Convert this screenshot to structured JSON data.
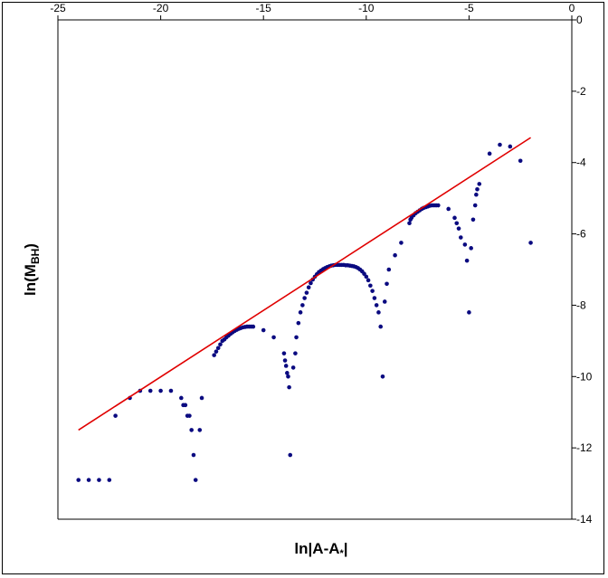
{
  "chart_data": {
    "type": "scatter",
    "xlim": [
      -25,
      0
    ],
    "ylim": [
      -14,
      0
    ],
    "x_ticks": [
      "-25",
      "-20",
      "-15",
      "-10",
      "-5",
      "0"
    ],
    "y_ticks": [
      "0",
      "-2",
      "-4",
      "-6",
      "-8",
      "-10",
      "-12",
      "-14"
    ],
    "x_tick_values": [
      -25,
      -20,
      -15,
      -10,
      -5,
      0
    ],
    "y_tick_values": [
      0,
      -2,
      -4,
      -6,
      -8,
      -10,
      -12,
      -14
    ],
    "xlabel": {
      "main": "ln|A-A",
      "sub": "*",
      "end": "|"
    },
    "ylabel": {
      "main": "ln(M",
      "sub": "BH",
      "end": ")"
    },
    "grid": false,
    "colors": {
      "points": "#0a0a80",
      "fit_line": "#e00000",
      "axis": "#000000"
    },
    "series": [
      {
        "type": "scatter",
        "points": [
          [
            -24.0,
            -12.9
          ],
          [
            -23.5,
            -12.9
          ],
          [
            -23.0,
            -12.9
          ],
          [
            -22.5,
            -12.9
          ],
          [
            -22.2,
            -11.1
          ],
          [
            -21.5,
            -10.6
          ],
          [
            -21.0,
            -10.4
          ],
          [
            -20.5,
            -10.4
          ],
          [
            -20.0,
            -10.4
          ],
          [
            -19.5,
            -10.4
          ],
          [
            -19.0,
            -10.6
          ],
          [
            -18.9,
            -10.8
          ],
          [
            -18.8,
            -10.8
          ],
          [
            -18.7,
            -11.1
          ],
          [
            -18.6,
            -11.1
          ],
          [
            -18.5,
            -11.5
          ],
          [
            -18.4,
            -12.2
          ],
          [
            -18.3,
            -12.9
          ],
          [
            -18.1,
            -11.5
          ],
          [
            -18.0,
            -10.6
          ],
          [
            -17.4,
            -9.4
          ],
          [
            -17.3,
            -9.3
          ],
          [
            -17.2,
            -9.2
          ],
          [
            -17.1,
            -9.1
          ],
          [
            -17.0,
            -9.0
          ],
          [
            -16.9,
            -8.96
          ],
          [
            -16.8,
            -8.9
          ],
          [
            -16.7,
            -8.85
          ],
          [
            -16.6,
            -8.8
          ],
          [
            -16.5,
            -8.76
          ],
          [
            -16.4,
            -8.72
          ],
          [
            -16.3,
            -8.69
          ],
          [
            -16.2,
            -8.66
          ],
          [
            -16.1,
            -8.64
          ],
          [
            -16.0,
            -8.62
          ],
          [
            -15.9,
            -8.61
          ],
          [
            -15.8,
            -8.6
          ],
          [
            -15.7,
            -8.6
          ],
          [
            -15.6,
            -8.6
          ],
          [
            -15.5,
            -8.6
          ],
          [
            -15.0,
            -8.7
          ],
          [
            -14.5,
            -8.9
          ],
          [
            -14.0,
            -9.35
          ],
          [
            -13.95,
            -9.55
          ],
          [
            -13.9,
            -9.7
          ],
          [
            -13.85,
            -9.9
          ],
          [
            -13.8,
            -10.0
          ],
          [
            -13.75,
            -10.3
          ],
          [
            -13.7,
            -12.2
          ],
          [
            -13.55,
            -9.75
          ],
          [
            -13.45,
            -9.35
          ],
          [
            -13.4,
            -8.9
          ],
          [
            -13.3,
            -8.5
          ],
          [
            -13.2,
            -8.2
          ],
          [
            -13.1,
            -8.0
          ],
          [
            -13.0,
            -7.8
          ],
          [
            -12.9,
            -7.65
          ],
          [
            -12.8,
            -7.5
          ],
          [
            -12.7,
            -7.38
          ],
          [
            -12.6,
            -7.28
          ],
          [
            -12.5,
            -7.2
          ],
          [
            -12.4,
            -7.13
          ],
          [
            -12.3,
            -7.07
          ],
          [
            -12.2,
            -7.03
          ],
          [
            -12.1,
            -6.99
          ],
          [
            -12.0,
            -6.96
          ],
          [
            -11.9,
            -6.93
          ],
          [
            -11.8,
            -6.91
          ],
          [
            -11.7,
            -6.89
          ],
          [
            -11.6,
            -6.88
          ],
          [
            -11.5,
            -6.87
          ],
          [
            -11.4,
            -6.87
          ],
          [
            -11.3,
            -6.87
          ],
          [
            -11.2,
            -6.87
          ],
          [
            -11.1,
            -6.87
          ],
          [
            -11.0,
            -6.88
          ],
          [
            -10.9,
            -6.88
          ],
          [
            -10.8,
            -6.89
          ],
          [
            -10.7,
            -6.9
          ],
          [
            -10.6,
            -6.91
          ],
          [
            -10.5,
            -6.93
          ],
          [
            -10.4,
            -6.96
          ],
          [
            -10.3,
            -7.0
          ],
          [
            -10.2,
            -7.05
          ],
          [
            -10.1,
            -7.12
          ],
          [
            -10.0,
            -7.2
          ],
          [
            -9.9,
            -7.3
          ],
          [
            -9.8,
            -7.45
          ],
          [
            -9.7,
            -7.6
          ],
          [
            -9.6,
            -7.8
          ],
          [
            -9.5,
            -8.0
          ],
          [
            -9.4,
            -8.2
          ],
          [
            -9.3,
            -8.6
          ],
          [
            -9.2,
            -10.0
          ],
          [
            -9.1,
            -7.9
          ],
          [
            -9.0,
            -7.4
          ],
          [
            -8.9,
            -7.0
          ],
          [
            -8.6,
            -6.6
          ],
          [
            -8.3,
            -6.25
          ],
          [
            -7.9,
            -5.7
          ],
          [
            -7.85,
            -5.6
          ],
          [
            -7.8,
            -5.55
          ],
          [
            -7.7,
            -5.48
          ],
          [
            -7.6,
            -5.42
          ],
          [
            -7.5,
            -5.38
          ],
          [
            -7.4,
            -5.34
          ],
          [
            -7.3,
            -5.3
          ],
          [
            -7.2,
            -5.27
          ],
          [
            -7.1,
            -5.25
          ],
          [
            -7.0,
            -5.23
          ],
          [
            -6.9,
            -5.21
          ],
          [
            -6.8,
            -5.2
          ],
          [
            -6.7,
            -5.2
          ],
          [
            -6.6,
            -5.2
          ],
          [
            -6.5,
            -5.2
          ],
          [
            -6.0,
            -5.3
          ],
          [
            -5.7,
            -5.55
          ],
          [
            -5.6,
            -5.7
          ],
          [
            -5.5,
            -5.85
          ],
          [
            -5.4,
            -6.1
          ],
          [
            -5.2,
            -6.3
          ],
          [
            -5.1,
            -6.75
          ],
          [
            -5.0,
            -8.2
          ],
          [
            -4.9,
            -6.4
          ],
          [
            -4.8,
            -5.6
          ],
          [
            -4.7,
            -5.2
          ],
          [
            -4.65,
            -4.9
          ],
          [
            -4.6,
            -4.75
          ],
          [
            -4.5,
            -4.6
          ],
          [
            -4.0,
            -3.75
          ],
          [
            -3.5,
            -3.5
          ],
          [
            -3.0,
            -3.55
          ],
          [
            -2.5,
            -3.95
          ],
          [
            -2.0,
            -6.25
          ]
        ]
      },
      {
        "type": "line",
        "points": [
          [
            -24.0,
            -11.5
          ],
          [
            -2.0,
            -3.3
          ]
        ]
      }
    ]
  }
}
